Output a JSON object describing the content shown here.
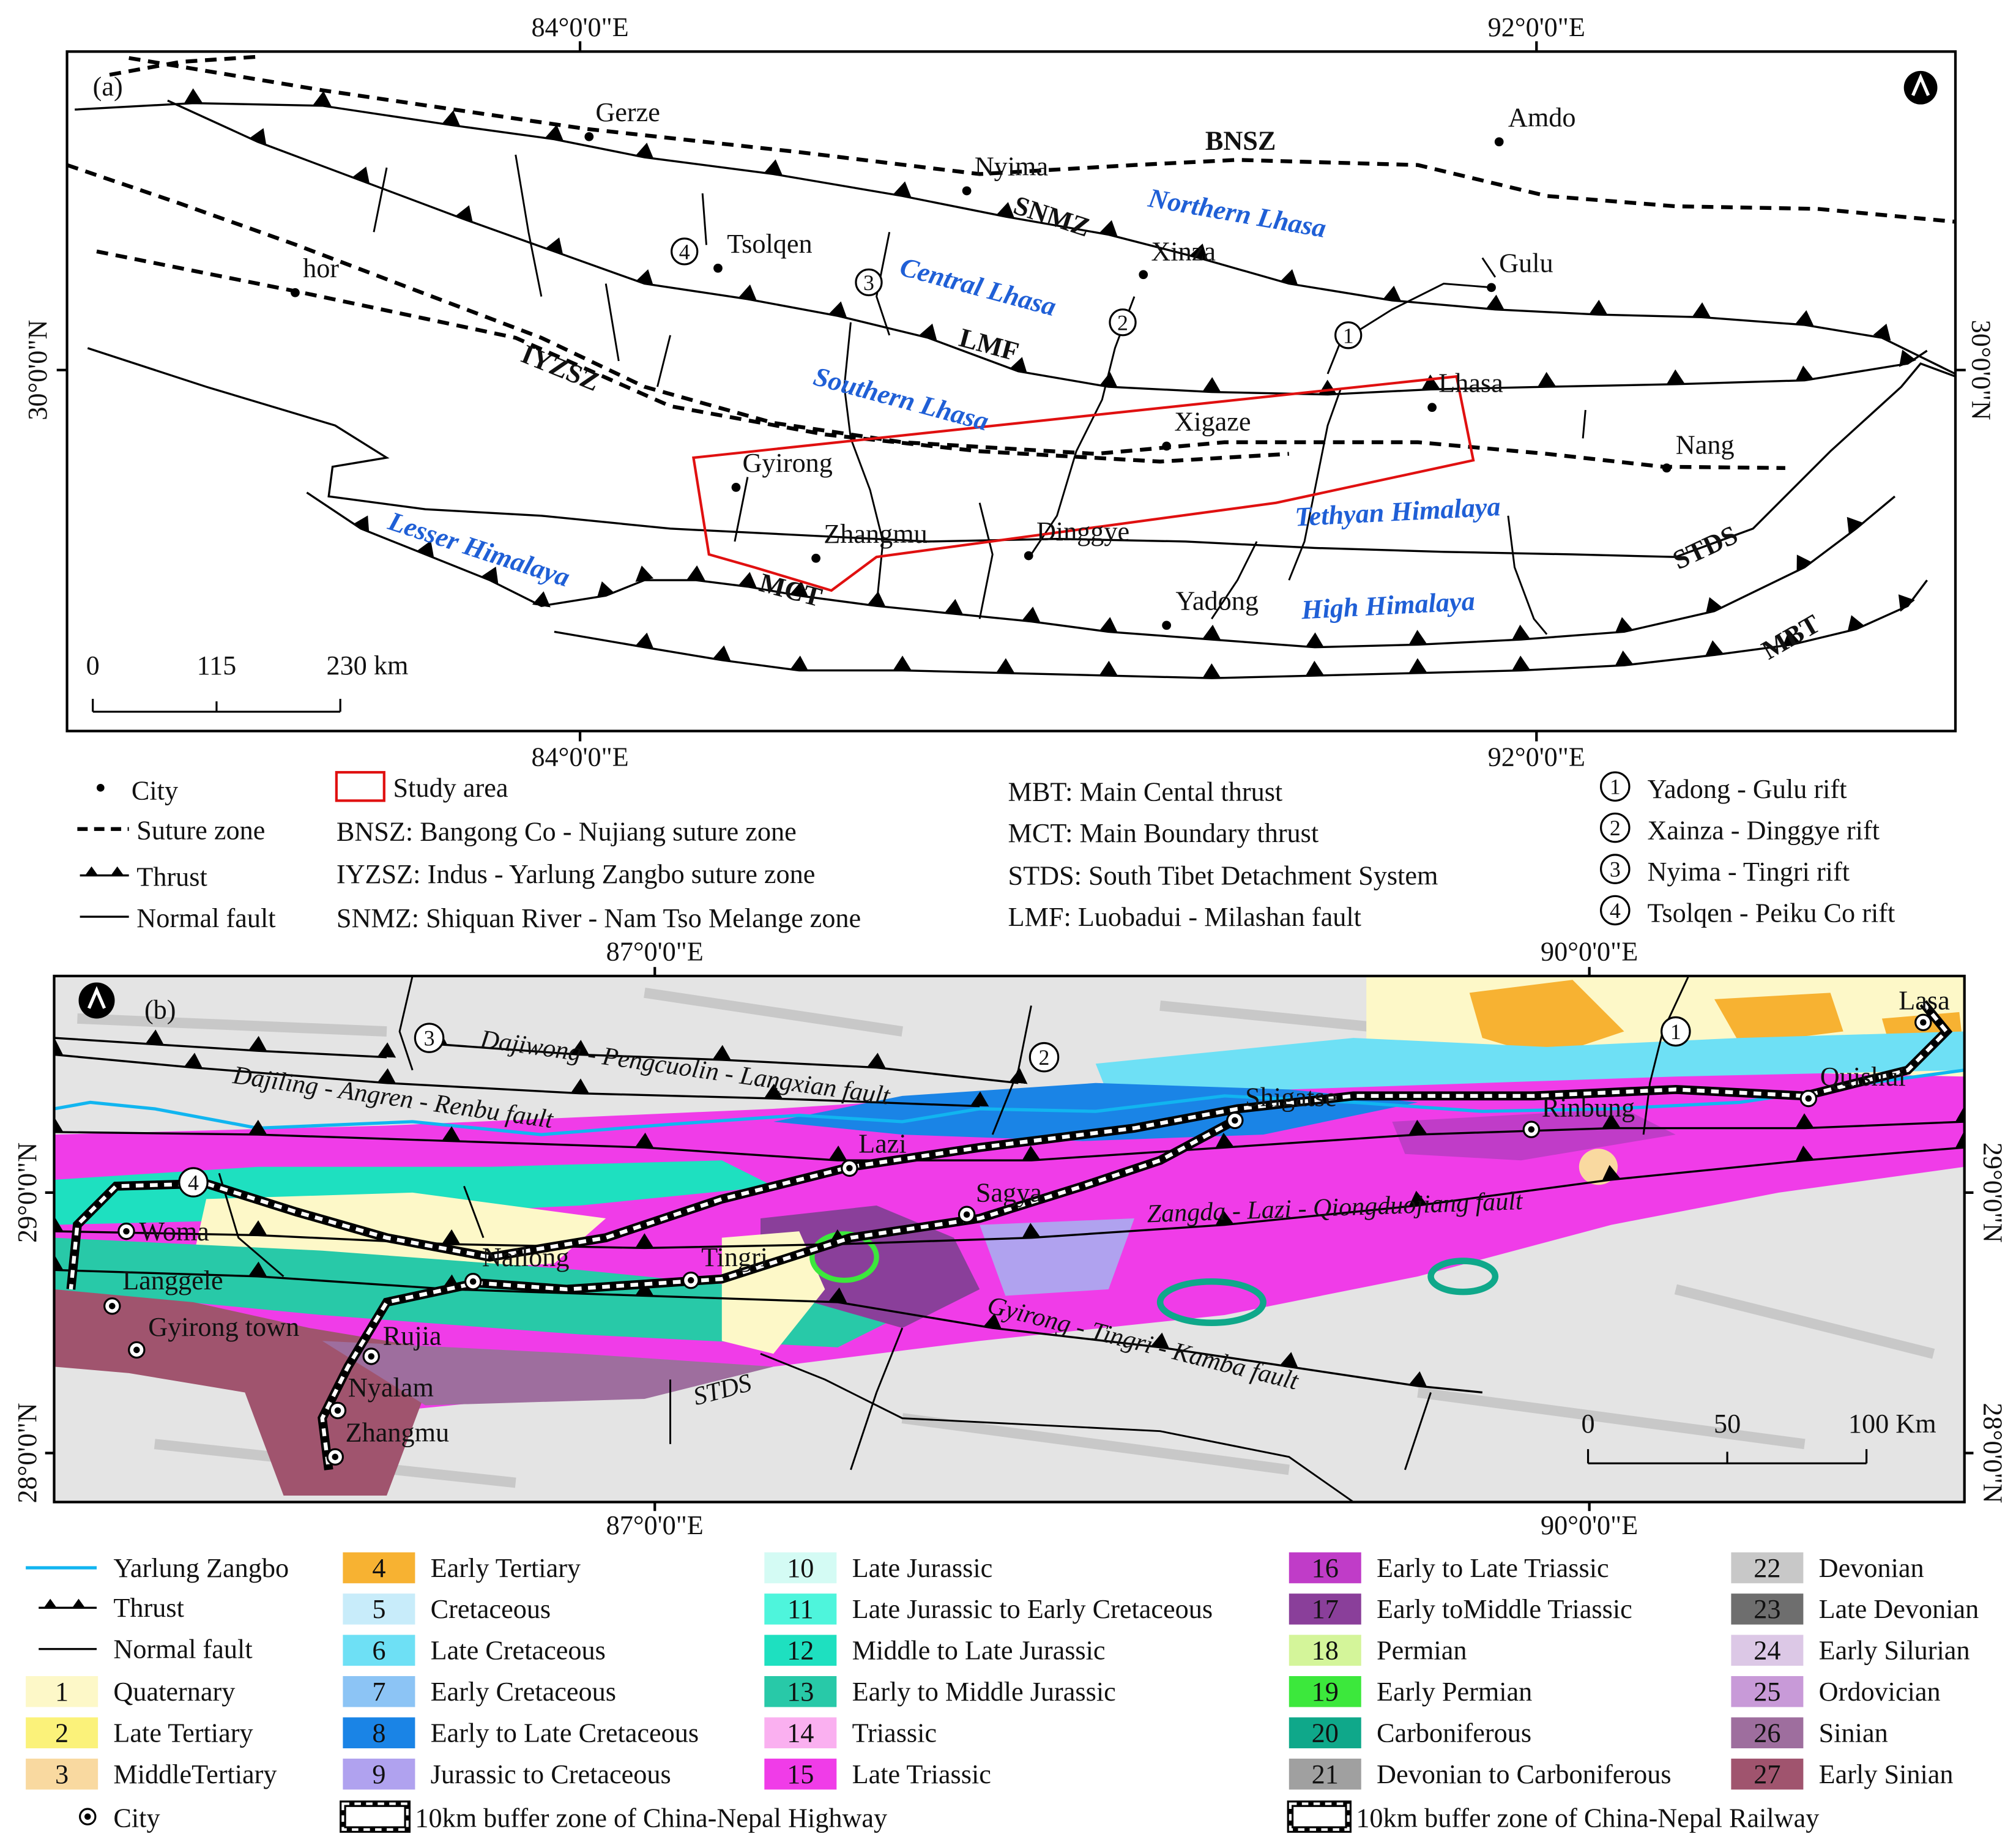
{
  "panel_a": {
    "label": "(a)",
    "lon_labels": [
      "84°0'0\"E",
      "92°0'0\"E"
    ],
    "lat_label": "30°0'0\"N",
    "cities": [
      "Gerze",
      "Amdo",
      "Nyima",
      "Tsolqen",
      "hor",
      "Xinza",
      "Gulu",
      "Lhasa",
      "Xigaze",
      "Nang",
      "Gyirong",
      "Zhangmu",
      "Dinggye",
      "Yadong"
    ],
    "zones": [
      "BNSZ",
      "SNMZ",
      "LMF",
      "IYZSZ",
      "MCT",
      "STDS",
      "MBT",
      "Northern Lhasa",
      "Central Lhasa",
      "Southern Lhasa",
      "Tethyan Himalaya",
      "High Himalaya",
      "Lesser Himalaya"
    ],
    "rifts": [
      1,
      2,
      3,
      4
    ],
    "scale": [
      "0",
      "115",
      "230 km"
    ]
  },
  "legend_a": {
    "city": "City",
    "suture": "Suture zone",
    "thrust": "Thrust",
    "normal": "Normal fault",
    "study": "Study area",
    "abbreviations": [
      "BNSZ: Bangong Co - Nujiang suture zone",
      "IYZSZ: Indus - Yarlung Zangbo suture zone",
      "SNMZ: Shiquan River - Nam Tso Melange zone",
      "MBT: Main Cental thrust",
      "MCT: Main Boundary thrust",
      "STDS: South Tibet Detachment System",
      "LMF: Luobadui - Milashan fault"
    ],
    "rifts": [
      {
        "number": 1,
        "name": "Yadong - Gulu rift"
      },
      {
        "number": 2,
        "name": "Xainza - Dinggye rift"
      },
      {
        "number": 3,
        "name": "Nyima - Tingri rift"
      },
      {
        "number": 4,
        "name": "Tsolqen - Peiku Co rift"
      }
    ]
  },
  "panel_b": {
    "label": "(b)",
    "lon_labels": [
      "87°0'0\"E",
      "90°0'0\"E"
    ],
    "lat_labels": [
      "29°0'0\"N",
      "28°0'0\"N"
    ],
    "cities": [
      "Lasa",
      "Quishui",
      "Shigatse",
      "Rinbung",
      "Lazi",
      "Sagya",
      "Woma",
      "Langgele",
      "Gyirong town",
      "Nailong",
      "Tingri",
      "Rujia",
      "Nyalam",
      "Zhangmu"
    ],
    "faults": [
      "Dajiwong - Pengcuolin - Langxian fault",
      "Dajiling - Angren - Renbu fault",
      "Zangda - Lazi - Qiongduojiang fault",
      "Gyirong - Tingri - Kamba fault",
      "STDS"
    ],
    "rifts": [
      1,
      2,
      3,
      4
    ],
    "scale": [
      "0",
      "50",
      "100 Km"
    ]
  },
  "legend_b": {
    "river": "Yarlung Zangbo",
    "thrust": "Thrust",
    "normal": "Normal fault",
    "city": "City",
    "highway_buffer": "10km buffer zone of China-Nepal Highway",
    "railway_buffer": "10km buffer zone of China-Nepal Railway",
    "units": [
      {
        "id": 1,
        "name": "Quaternary",
        "color": "#fdf8c8"
      },
      {
        "id": 2,
        "name": "Late Tertiary",
        "color": "#fbf27a"
      },
      {
        "id": 3,
        "name": "MiddleTertiary",
        "color": "#f9d9a0"
      },
      {
        "id": 4,
        "name": "Early Tertiary",
        "color": "#f7b232"
      },
      {
        "id": 5,
        "name": "Cretaceous",
        "color": "#c8ecfa"
      },
      {
        "id": 6,
        "name": "Late Cretaceous",
        "color": "#6ee0f5"
      },
      {
        "id": 7,
        "name": "Early Cretaceous",
        "color": "#8cc4f5"
      },
      {
        "id": 8,
        "name": "Early to Late Cretaceous",
        "color": "#1a84e6"
      },
      {
        "id": 9,
        "name": "Jurassic to Cretaceous",
        "color": "#b0a2ef"
      },
      {
        "id": 10,
        "name": "Late Jurassic",
        "color": "#d4fbf4"
      },
      {
        "id": 11,
        "name": "Late Jurassic to Early Cretaceous",
        "color": "#4ef5dc"
      },
      {
        "id": 12,
        "name": "Middle to Late Jurassic",
        "color": "#1ee0c0"
      },
      {
        "id": 13,
        "name": "Early to Middle Jurassic",
        "color": "#28c9a8"
      },
      {
        "id": 14,
        "name": "Triassic",
        "color": "#fab0f0"
      },
      {
        "id": 15,
        "name": "Late Triassic",
        "color": "#f03ce8"
      },
      {
        "id": 16,
        "name": "Early to Late Triassic",
        "color": "#c03cc8"
      },
      {
        "id": 17,
        "name": "Early toMiddle Triassic",
        "color": "#8a3f9a"
      },
      {
        "id": 18,
        "name": "Permian",
        "color": "#d4f59a"
      },
      {
        "id": 19,
        "name": "Early Permian",
        "color": "#3ce83c"
      },
      {
        "id": 20,
        "name": "Carboniferous",
        "color": "#0fa88a"
      },
      {
        "id": 21,
        "name": "Devonian to Carboniferous",
        "color": "#a0a0a0"
      },
      {
        "id": 22,
        "name": "Devonian",
        "color": "#c8c8c8"
      },
      {
        "id": 23,
        "name": "Late Devonian",
        "color": "#6e6e6e"
      },
      {
        "id": 24,
        "name": "Early Silurian",
        "color": "#dcc8e6"
      },
      {
        "id": 25,
        "name": "Ordovician",
        "color": "#c89ad8"
      },
      {
        "id": 26,
        "name": "Sinian",
        "color": "#9e6e9e"
      },
      {
        "id": 27,
        "name": "Early Sinian",
        "color": "#a0546e"
      }
    ]
  }
}
